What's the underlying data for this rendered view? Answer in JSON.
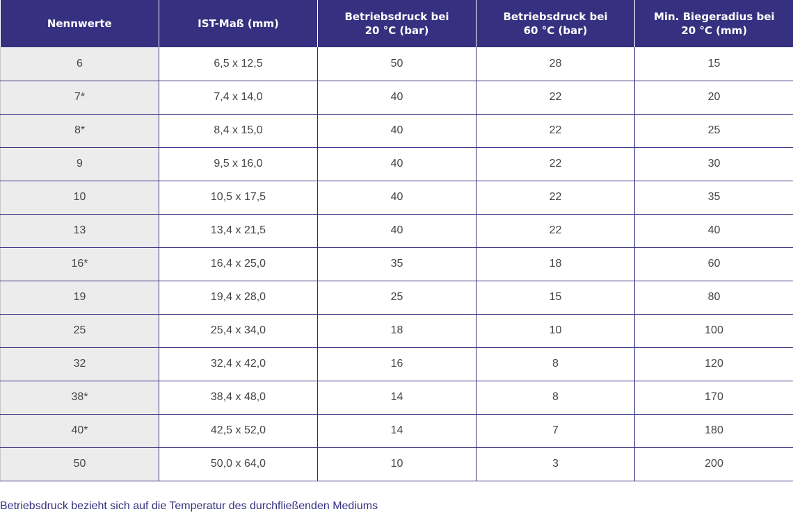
{
  "table": {
    "headers": [
      [
        "Nennwerte"
      ],
      [
        "IST-Maß (mm)"
      ],
      [
        "Betriebsdruck bei",
        "20 °C (bar)"
      ],
      [
        "Betriebsdruck bei",
        "60 °C (bar)"
      ],
      [
        "Min. Biegeradius bei",
        "20 °C (mm)"
      ]
    ],
    "rows": [
      [
        "6",
        "6,5 x 12,5",
        "50",
        "28",
        "15"
      ],
      [
        "7*",
        "7,4 x 14,0",
        "40",
        "22",
        "20"
      ],
      [
        "8*",
        "8,4 x 15,0",
        "40",
        "22",
        "25"
      ],
      [
        "9",
        "9,5 x 16,0",
        "40",
        "22",
        "30"
      ],
      [
        "10",
        "10,5 x 17,5",
        "40",
        "22",
        "35"
      ],
      [
        "13",
        "13,4 x 21,5",
        "40",
        "22",
        "40"
      ],
      [
        "16*",
        "16,4 x 25,0",
        "35",
        "18",
        "60"
      ],
      [
        "19",
        "19,4 x 28,0",
        "25",
        "15",
        "80"
      ],
      [
        "25",
        "25,4 x 34,0",
        "18",
        "10",
        "100"
      ],
      [
        "32",
        "32,4 x 42,0",
        "16",
        "8",
        "120"
      ],
      [
        "38*",
        "38,4 x 48,0",
        "14",
        "8",
        "170"
      ],
      [
        "40*",
        "42,5 x 52,0",
        "14",
        "7",
        "180"
      ],
      [
        "50",
        "50,0 x 64,0",
        "10",
        "3",
        "200"
      ]
    ]
  },
  "footnote": "Betriebsdruck bezieht sich auf die Temperatur des durchfließenden Mediums",
  "colors": {
    "header_bg": "#35307f",
    "first_column_bg": "#ececec",
    "footnote_text": "#35307f"
  }
}
